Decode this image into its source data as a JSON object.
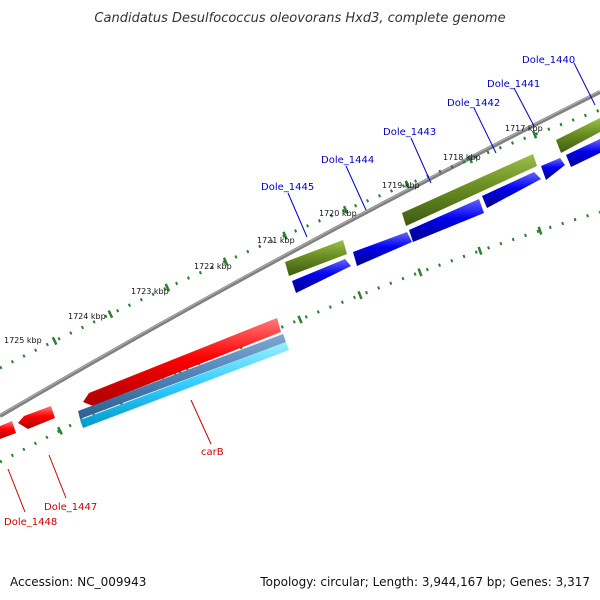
{
  "title": "Candidatus Desulfococcus oleovorans Hxd3, complete genome",
  "footer": {
    "accession": "Accession: NC_009943",
    "summary": "Topology: circular; Length: 3,944,167 bp; Genes: 3,317"
  },
  "colors": {
    "forward_cds": "#0000ee",
    "reverse_cds": "#ff0000",
    "gene_fwd": "#6b8e23",
    "rna_dark": "#4f83b6",
    "rna_light": "#33ccff",
    "backbone": "#808080",
    "ticks": "#2e7d32",
    "label_forward": "#0000cc",
    "label_reverse": "#cc0000"
  },
  "scale_ticks": [
    {
      "label": "1717 kbp"
    },
    {
      "label": "1718 kbp"
    },
    {
      "label": "1719 kbp"
    },
    {
      "label": "1720 kbp"
    },
    {
      "label": "1721 kbp"
    },
    {
      "label": "1722 kbp"
    },
    {
      "label": "1723 kbp"
    },
    {
      "label": "1724 kbp"
    },
    {
      "label": "1725 kbp"
    }
  ],
  "gene_labels": [
    {
      "text": "Dole_1440",
      "strand": "forward"
    },
    {
      "text": "Dole_1441",
      "strand": "forward"
    },
    {
      "text": "Dole_1442",
      "strand": "forward"
    },
    {
      "text": "Dole_1443",
      "strand": "forward"
    },
    {
      "text": "Dole_1444",
      "strand": "forward"
    },
    {
      "text": "Dole_1445",
      "strand": "forward"
    },
    {
      "text": "carB",
      "strand": "reverse"
    },
    {
      "text": "Dole_1447",
      "strand": "reverse"
    },
    {
      "text": "Dole_1448",
      "strand": "reverse"
    }
  ]
}
